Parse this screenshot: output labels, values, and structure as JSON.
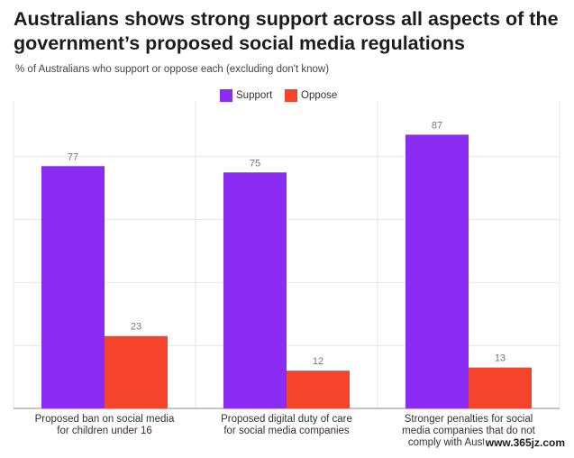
{
  "title": "Australians shows strong support across all aspects of the government’s proposed social media regulations",
  "subtitle": "% of Australians who support or oppose each (excluding don't know)",
  "watermark": "www.365jz.com",
  "colors": {
    "support": "#8b2cf5",
    "oppose": "#f5432c",
    "grid": "#e6e6e6",
    "axis": "#888888",
    "label": "#777777"
  },
  "legend": [
    {
      "name": "Support",
      "color": "#8b2cf5"
    },
    {
      "name": "Oppose",
      "color": "#f5432c"
    }
  ],
  "chart_data": {
    "type": "bar",
    "title": "Australians shows strong support across all aspects of the government’s proposed social media regulations",
    "subtitle": "% of Australians who support or oppose each (excluding don't know)",
    "categories": [
      [
        "Proposed ban on social media",
        "for children under 16"
      ],
      [
        "Proposed digital duty of care",
        "for social media companies"
      ],
      [
        "Stronger penalties for social",
        "media companies that do not",
        "comply with Australian law"
      ]
    ],
    "series": [
      {
        "name": "Support",
        "values": [
          77,
          75,
          87
        ]
      },
      {
        "name": "Oppose",
        "values": [
          23,
          12,
          13
        ]
      }
    ],
    "ylim": [
      0,
      100
    ],
    "grid": true,
    "legend_position": "top-left",
    "xlabel": "",
    "ylabel": ""
  }
}
